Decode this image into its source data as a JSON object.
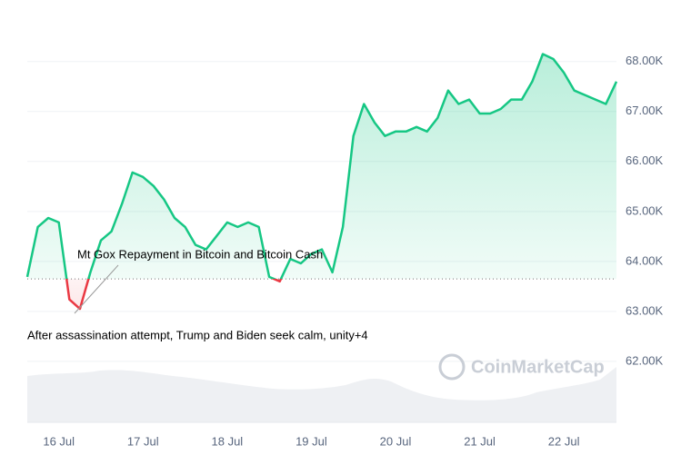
{
  "chart_data": {
    "type": "line",
    "categories": [
      null,
      null,
      null,
      "16 Jul",
      null,
      null,
      null,
      null,
      null,
      null,
      null,
      "17 Jul",
      null,
      null,
      null,
      null,
      null,
      null,
      null,
      "18 Jul",
      null,
      null,
      null,
      null,
      null,
      null,
      null,
      "19 Jul",
      null,
      null,
      null,
      null,
      null,
      null,
      null,
      "20 Jul",
      null,
      null,
      null,
      null,
      null,
      null,
      null,
      "21 Jul",
      null,
      null,
      null,
      null,
      null,
      null,
      null,
      "22 Jul",
      null,
      null,
      null,
      null,
      null
    ],
    "values": [
      63690,
      64690,
      64870,
      64780,
      63240,
      63050,
      63780,
      64420,
      64600,
      65150,
      65780,
      65690,
      65510,
      65240,
      64870,
      64690,
      64330,
      64240,
      64510,
      64780,
      64690,
      64780,
      64690,
      63690,
      63600,
      64050,
      63960,
      64150,
      64240,
      63780,
      64690,
      66510,
      67150,
      66780,
      66510,
      66600,
      66600,
      66690,
      66600,
      66870,
      67420,
      67150,
      67240,
      66960,
      66960,
      67050,
      67240,
      67240,
      67600,
      68150,
      68050,
      67780,
      67420,
      67330,
      67240,
      67150,
      67600
    ],
    "color": "#16c784",
    "below_color": "#ea3943",
    "baseline": 63650,
    "ylim": [
      60780,
      69050
    ],
    "yticks": [
      {
        "value": 62000,
        "label": "62.00K"
      },
      {
        "value": 63000,
        "label": "63.00K"
      },
      {
        "value": 64000,
        "label": "64.00K"
      },
      {
        "value": 65000,
        "label": "65.00K"
      },
      {
        "value": 66000,
        "label": "66.00K"
      },
      {
        "value": 67000,
        "label": "67.00K"
      },
      {
        "value": 68000,
        "label": "68.00K"
      }
    ],
    "grid": true,
    "annotations": [
      "Mt Gox Repayment in Bitcoin and Bitcoin Cash",
      "After assassination attempt, Trump and Biden seek calm, unity+4"
    ],
    "watermark": "CoinMarketCap"
  }
}
